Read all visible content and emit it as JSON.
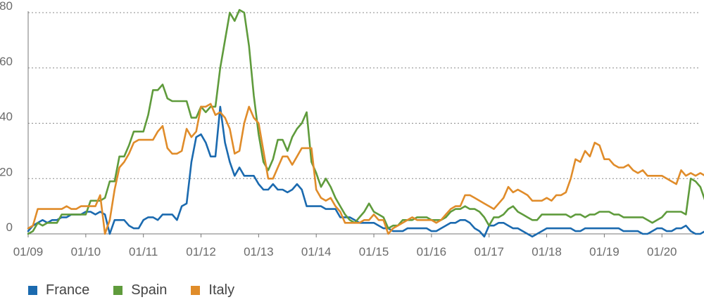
{
  "chart_data": {
    "type": "line",
    "title": "",
    "xlabel": "",
    "ylabel": "",
    "ylim": [
      0,
      80
    ],
    "yticks": [
      0,
      20,
      40,
      60,
      80
    ],
    "grid": "horizontal dashed",
    "legend_position": "bottom-left",
    "x_tick_labels": [
      "01/09",
      "01/10",
      "01/11",
      "01/12",
      "01/13",
      "01/14",
      "01/15",
      "01/16",
      "01/17",
      "01/18",
      "01/19",
      "01/20"
    ],
    "x_start": "2009-01",
    "x_frequency": "monthly",
    "series": [
      {
        "name": "France",
        "color": "#1b6aaf",
        "values": [
          1,
          3,
          4,
          5,
          4,
          5,
          5,
          6,
          6,
          7,
          7,
          7,
          8,
          8,
          7,
          8,
          7,
          0,
          5,
          5,
          5,
          3,
          2,
          2,
          5,
          6,
          6,
          5,
          7,
          7,
          7,
          5,
          10,
          11,
          26,
          35,
          36,
          33,
          28,
          28,
          46,
          33,
          26,
          21,
          24,
          21,
          21,
          21,
          18,
          16,
          16,
          18,
          16,
          16,
          15,
          16,
          18,
          16,
          10,
          10,
          10,
          10,
          9,
          9,
          9,
          6,
          6,
          6,
          5,
          4,
          4,
          4,
          4,
          3,
          2,
          2,
          1,
          1,
          1,
          2,
          2,
          2,
          2,
          2,
          1,
          1,
          2,
          3,
          4,
          4,
          5,
          5,
          4,
          2,
          1,
          -1,
          3,
          3,
          4,
          4,
          3,
          2,
          2,
          1,
          0,
          -1,
          0,
          1,
          2,
          2,
          2,
          2,
          2,
          2,
          1,
          1,
          2,
          2,
          2,
          2,
          2,
          2,
          2,
          2,
          1,
          1,
          1,
          1,
          0,
          0,
          1,
          2,
          2,
          1,
          1,
          2,
          2,
          3,
          1,
          0,
          0,
          1,
          1,
          1,
          1
        ]
      },
      {
        "name": "Spain",
        "color": "#5f9b3c",
        "values": [
          0,
          1,
          4,
          3,
          4,
          4,
          4,
          7,
          7,
          7,
          7,
          7,
          7,
          12,
          12,
          12,
          13,
          19,
          19,
          28,
          28,
          32,
          37,
          37,
          37,
          43,
          52,
          52,
          54,
          49,
          48,
          48,
          48,
          48,
          42,
          42,
          46,
          44,
          46,
          46,
          60,
          70,
          80,
          77,
          81,
          80,
          68,
          50,
          36,
          26,
          23,
          27,
          34,
          34,
          30,
          35,
          38,
          40,
          44,
          26,
          22,
          17,
          20,
          17,
          13,
          10,
          7,
          5,
          4,
          6,
          8,
          11,
          8,
          7,
          6,
          2,
          3,
          3,
          5,
          5,
          5,
          6,
          6,
          6,
          5,
          5,
          5,
          6,
          8,
          9,
          9,
          10,
          9,
          9,
          8,
          6,
          3,
          6,
          6,
          7,
          9,
          10,
          8,
          7,
          6,
          5,
          5,
          7,
          7,
          7,
          7,
          7,
          7,
          6,
          7,
          7,
          6,
          7,
          7,
          8,
          8,
          8,
          7,
          7,
          6,
          6,
          6,
          6,
          6,
          5,
          4,
          5,
          6,
          8,
          8,
          8,
          8,
          7,
          20,
          19,
          17,
          12,
          10,
          8,
          8,
          8,
          8
        ]
      },
      {
        "name": "Italy",
        "color": "#e08c2a",
        "values": [
          2,
          3,
          9,
          9,
          9,
          9,
          9,
          9,
          10,
          9,
          9,
          10,
          10,
          10,
          10,
          14,
          0,
          5,
          16,
          24,
          26,
          29,
          33,
          34,
          34,
          34,
          34,
          37,
          39,
          31,
          29,
          29,
          30,
          38,
          35,
          37,
          46,
          46,
          47,
          43,
          44,
          42,
          38,
          29,
          30,
          40,
          46,
          42,
          40,
          30,
          20,
          20,
          24,
          28,
          28,
          25,
          28,
          31,
          31,
          31,
          16,
          13,
          12,
          13,
          10,
          8,
          4,
          4,
          4,
          4,
          5,
          5,
          7,
          5,
          5,
          0,
          2,
          3,
          4,
          5,
          6,
          5,
          5,
          5,
          5,
          4,
          5,
          7,
          9,
          10,
          10,
          14,
          14,
          13,
          12,
          11,
          10,
          9,
          11,
          13,
          17,
          15,
          16,
          15,
          14,
          12,
          12,
          12,
          13,
          12,
          14,
          14,
          15,
          20,
          27,
          26,
          30,
          28,
          33,
          32,
          27,
          27,
          25,
          24,
          24,
          25,
          23,
          22,
          23,
          21,
          21,
          21,
          21,
          20,
          19,
          18,
          23,
          21,
          22,
          21,
          22,
          21,
          20,
          20,
          19,
          19
        ]
      }
    ]
  }
}
